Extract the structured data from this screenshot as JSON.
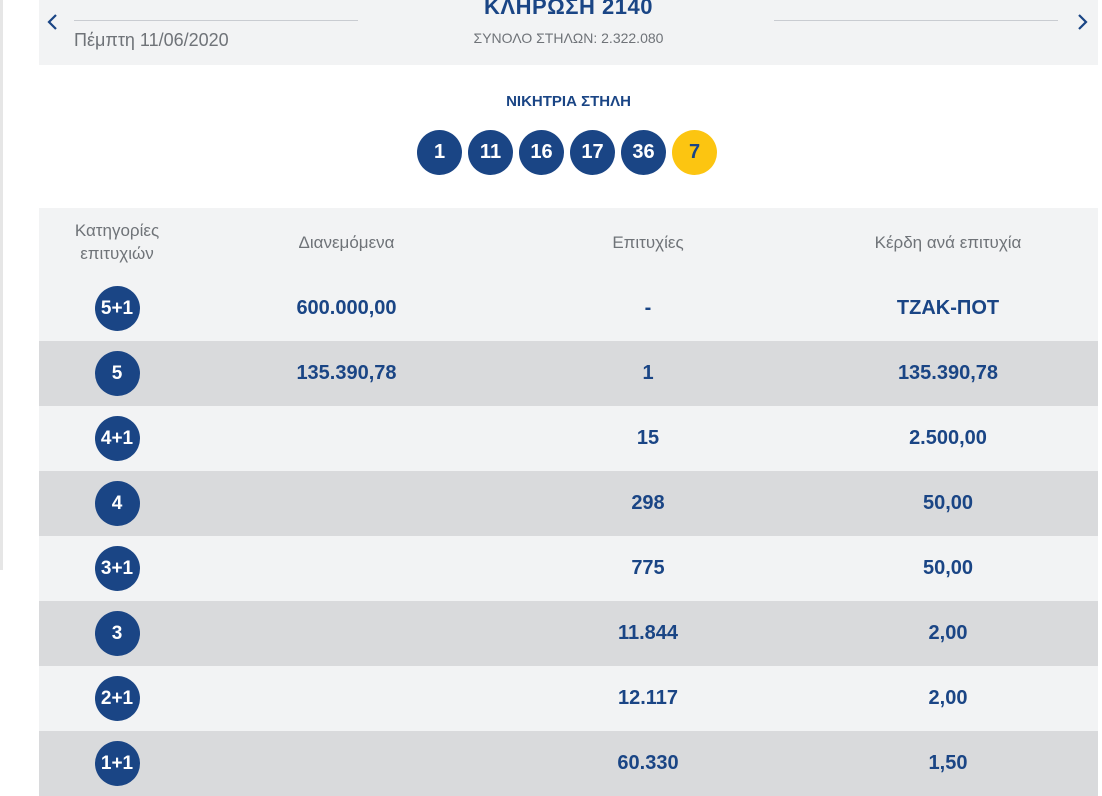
{
  "draw": {
    "date": "Πέμπτη 11/06/2020",
    "title": "ΚΛΗΡΩΣΗ 2140",
    "total_columns": "ΣΥΝΟΛΟ ΣΤΗΛΩΝ: 2.322.080",
    "prev_icon": "chevron-left-icon",
    "next_icon": "chevron-right-icon"
  },
  "winning": {
    "title": "ΝΙΚΗΤΡΙΑ ΣΤΗΛΗ",
    "numbers": [
      "1",
      "11",
      "16",
      "17",
      "36"
    ],
    "joker": "7"
  },
  "table": {
    "headers": {
      "category": "Κατηγορίες επιτυχιών",
      "distributed": "Διανεμόμενα",
      "winners": "Επιτυχίες",
      "prize": "Κέρδη ανά επιτυχία"
    },
    "rows": [
      {
        "category": "5+1",
        "distributed": "600.000,00",
        "winners": "-",
        "prize": "ΤΖΑΚ-ΠΟΤ"
      },
      {
        "category": "5",
        "distributed": "135.390,78",
        "winners": "1",
        "prize": "135.390,78"
      },
      {
        "category": "4+1",
        "distributed": "",
        "winners": "15",
        "prize": "2.500,00"
      },
      {
        "category": "4",
        "distributed": "",
        "winners": "298",
        "prize": "50,00"
      },
      {
        "category": "3+1",
        "distributed": "",
        "winners": "775",
        "prize": "50,00"
      },
      {
        "category": "3",
        "distributed": "",
        "winners": "11.844",
        "prize": "2,00"
      },
      {
        "category": "2+1",
        "distributed": "",
        "winners": "12.117",
        "prize": "2,00"
      },
      {
        "category": "1+1",
        "distributed": "",
        "winners": "60.330",
        "prize": "1,50"
      }
    ]
  },
  "colors": {
    "primary": "#1a4585",
    "joker": "#fcc511",
    "row_light": "#f2f3f4",
    "row_dark": "#d9dadc"
  }
}
